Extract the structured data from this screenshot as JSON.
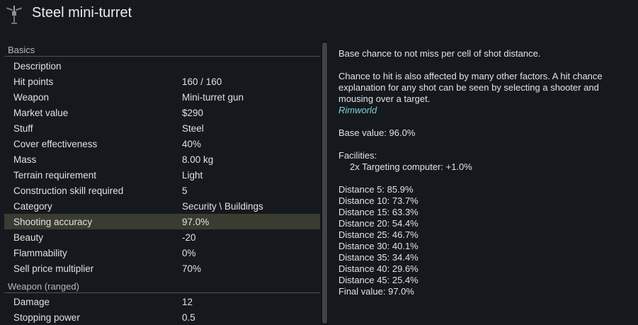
{
  "window": {
    "title": "Steel mini-turret",
    "icon": "turret-icon"
  },
  "basics": {
    "header": "Basics",
    "rows": [
      {
        "label": "Description",
        "value": ""
      },
      {
        "label": "Hit points",
        "value": "160 / 160"
      },
      {
        "label": "Weapon",
        "value": "Mini-turret gun"
      },
      {
        "label": "Market value",
        "value": "$290"
      },
      {
        "label": "Stuff",
        "value": "Steel"
      },
      {
        "label": "Cover effectiveness",
        "value": "40%"
      },
      {
        "label": "Mass",
        "value": "8.00 kg"
      },
      {
        "label": "Terrain requirement",
        "value": "Light"
      },
      {
        "label": "Construction skill required",
        "value": "5"
      },
      {
        "label": "Category",
        "value": "Security \\ Buildings"
      },
      {
        "label": "Shooting accuracy",
        "value": "97.0%"
      },
      {
        "label": "Beauty",
        "value": "-20"
      },
      {
        "label": "Flammability",
        "value": "0%"
      },
      {
        "label": "Sell price multiplier",
        "value": "70%"
      }
    ]
  },
  "weapon_ranged": {
    "header": "Weapon (ranged)",
    "rows": [
      {
        "label": "Damage",
        "value": "12"
      },
      {
        "label": "Stopping power",
        "value": "0.5"
      }
    ]
  },
  "detail": {
    "line1": "Base chance to not miss per cell of shot distance.",
    "line2": "Chance to hit is also affected by many other factors. A hit chance explanation for any shot can be seen by selecting a shooter and mousing over a target.",
    "source": "Rimworld",
    "base_value": "Base value: 96.0%",
    "facilities_header": "Facilities:",
    "facility_item": "2x Targeting computer: +1.0%",
    "distances": [
      "Distance 5: 85.9%",
      "Distance 10: 73.7%",
      "Distance 15: 63.3%",
      "Distance 20: 54.4%",
      "Distance 25: 46.7%",
      "Distance 30: 40.1%",
      "Distance 35: 34.4%",
      "Distance 40: 29.6%",
      "Distance 45: 25.4%"
    ],
    "final_value": "Final value: 97.0%"
  },
  "colors": {
    "background": "#15191d",
    "selected_row": "#3a3c32",
    "link": "#7fd0dc"
  }
}
